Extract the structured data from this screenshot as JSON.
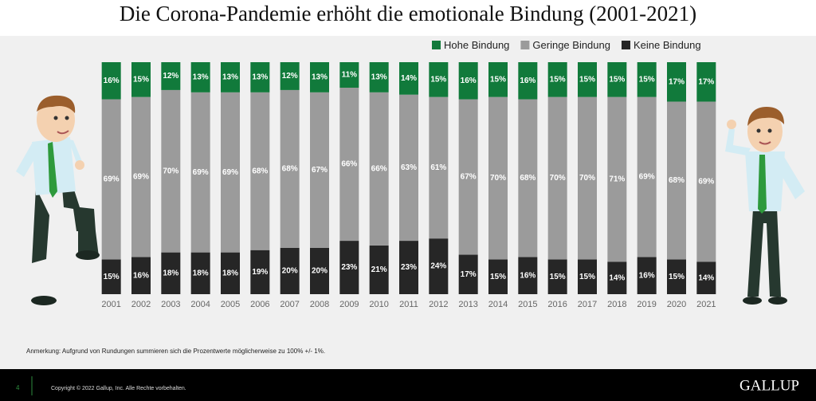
{
  "chart_data": {
    "type": "stacked-bar",
    "title": "Die Corona-Pandemie erhöht die emotionale Bindung (2001-2021)",
    "categories": [
      "2001",
      "2002",
      "2003",
      "2004",
      "2005",
      "2006",
      "2007",
      "2008",
      "2009",
      "2010",
      "2011",
      "2012",
      "2013",
      "2014",
      "2015",
      "2016",
      "2017",
      "2018",
      "2019",
      "2020",
      "2021"
    ],
    "series": [
      {
        "name": "Hohe Bindung",
        "color": "#117a3b",
        "values": [
          16,
          15,
          12,
          13,
          13,
          13,
          12,
          13,
          11,
          13,
          14,
          15,
          16,
          15,
          16,
          15,
          15,
          15,
          15,
          17,
          17
        ],
        "value_labels": [
          "16%",
          "15%",
          "12%",
          "13%",
          "13%",
          "13%",
          "12%",
          "13%",
          "11%",
          "13%",
          "14%",
          "15%",
          "16%",
          "15%",
          "16%",
          "15%",
          "15%",
          "15%",
          "15%",
          "17%",
          "17%"
        ]
      },
      {
        "name": "Geringe Bindung",
        "color": "#9b9b9b",
        "values": [
          69,
          69,
          70,
          69,
          69,
          68,
          68,
          67,
          66,
          66,
          63,
          61,
          67,
          70,
          68,
          70,
          70,
          71,
          69,
          68,
          69
        ],
        "value_labels": [
          "69%",
          "69%",
          "70%",
          "69%",
          "69%",
          "68%",
          "68%",
          "67%",
          "66%",
          "66%",
          "63%",
          "61%",
          "67%",
          "70%",
          "68%",
          "70%",
          "70%",
          "71%",
          "69%",
          "68%",
          "69%"
        ]
      },
      {
        "name": "Keine Bindung",
        "color": "#262626",
        "values": [
          15,
          16,
          18,
          18,
          18,
          19,
          20,
          20,
          23,
          21,
          23,
          24,
          17,
          15,
          16,
          15,
          15,
          14,
          16,
          15,
          14
        ],
        "value_labels": [
          "15%",
          "16%",
          "18%",
          "18%",
          "18%",
          "19%",
          "20%",
          "20%",
          "23%",
          "21%",
          "23%",
          "24%",
          "17%",
          "15%",
          "16%",
          "15%",
          "15%",
          "14%",
          "16%",
          "15%",
          "14%"
        ]
      }
    ],
    "note": "Anmerkung: Aufgrund von Rundungen summieren sich die Prozentwerte möglicherweise zu 100% +/- 1%."
  },
  "slide": {
    "page_number": "4",
    "copyright": "Copyright © 2022 Gallup, Inc. Alle Rechte vorbehalten.",
    "logo": "GALLUP"
  }
}
